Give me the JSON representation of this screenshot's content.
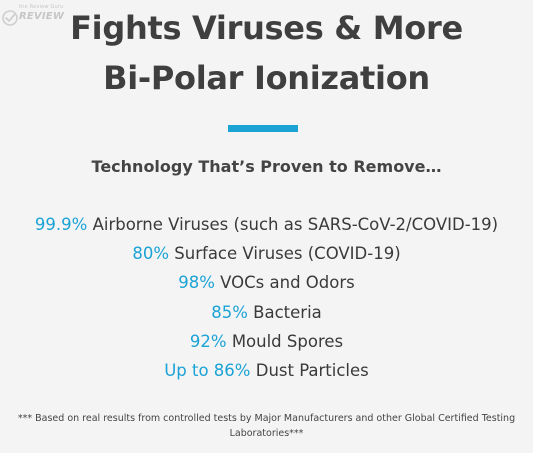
{
  "watermark": {
    "tagline": "the Review Guru",
    "brand": "REVIEW"
  },
  "headline": {
    "line1": "Fights Viruses & More",
    "line2": "Bi-Polar Ionization"
  },
  "colors": {
    "accent": "#1ba3d6",
    "heading_text": "#3f3f3f",
    "body_text": "#3a3a3a",
    "background": "#f4f4f4"
  },
  "subheading": "Technology That’s Proven to Remove…",
  "stats": [
    {
      "value": "99.9%",
      "label": "Airborne Viruses (such as SARS-CoV-2/COVID-19)"
    },
    {
      "value": "80%",
      "label": "Surface Viruses (COVID-19)"
    },
    {
      "value": "98%",
      "label": "VOCs and Odors"
    },
    {
      "value": "85%",
      "label": "Bacteria"
    },
    {
      "value": "92%",
      "label": "Mould Spores"
    },
    {
      "value": "Up to 86%",
      "label": "Dust Particles"
    }
  ],
  "footnote": "*** Based on real results from controlled tests by Major Manufacturers and other Global Certified Testing Laboratories***"
}
